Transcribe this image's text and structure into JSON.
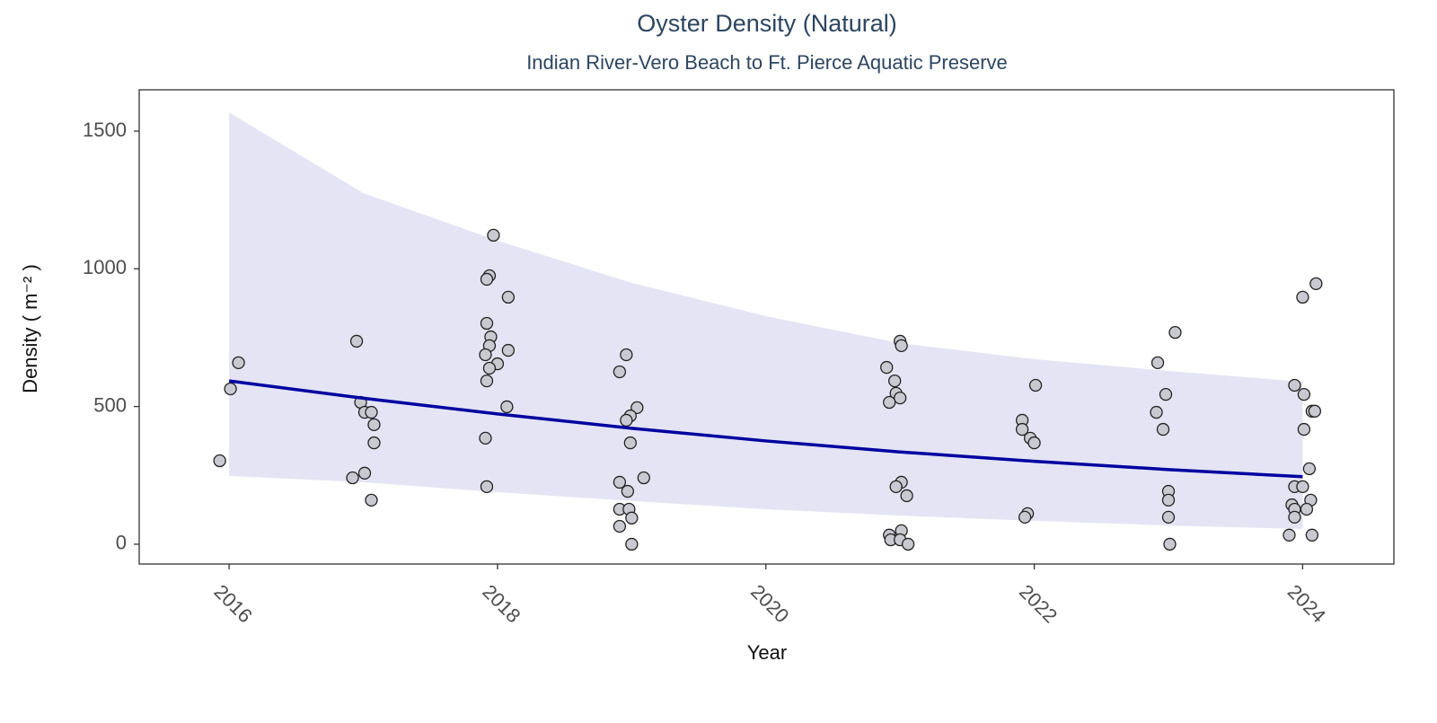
{
  "chart_data": {
    "type": "scatter",
    "title": "Oyster Density (Natural)",
    "subtitle": "Indian River-Vero Beach to Ft. Pierce Aquatic Preserve",
    "x_label": "Year",
    "y_label": "Density ( m⁻² )",
    "xlim": [
      2015.33,
      2024.68
    ],
    "xticks": [
      2016,
      2018,
      2020,
      2022,
      2024
    ],
    "ylim": [
      -72,
      1650
    ],
    "yticks": [
      0,
      500,
      1000,
      1500
    ],
    "grid": false,
    "point_color": "#c9c9d1",
    "x": [
      2015.93,
      2016.01,
      2016.07,
      2016.95,
      2016.98,
      2017.01,
      2017.06,
      2017.08,
      2017.08,
      2017.01,
      2016.92,
      2017.06,
      2017.97,
      2017.94,
      2017.92,
      2018.08,
      2017.92,
      2017.95,
      2017.94,
      2017.91,
      2018.08,
      2018.0,
      2017.94,
      2017.92,
      2018.07,
      2017.91,
      2017.92,
      2018.96,
      2018.91,
      2019.04,
      2018.99,
      2018.96,
      2018.99,
      2019.09,
      2018.91,
      2018.97,
      2018.91,
      2018.98,
      2019.0,
      2018.91,
      2019.0,
      2020.9,
      2020.96,
      2021.0,
      2021.01,
      2020.97,
      2021.0,
      2020.92,
      2021.01,
      2020.97,
      2021.05,
      2020.92,
      2020.93,
      2021.01,
      2021.0,
      2021.06,
      2022.01,
      2021.91,
      2021.91,
      2021.97,
      2022.0,
      2021.95,
      2021.93,
      2023.05,
      2022.92,
      2022.98,
      2022.91,
      2022.96,
      2023.0,
      2023.0,
      2023.0,
      2023.01,
      2024.1,
      2024.0,
      2023.94,
      2024.01,
      2024.07,
      2024.09,
      2024.01,
      2024.05,
      2023.94,
      2024.0,
      2023.92,
      2024.06,
      2023.94,
      2024.03,
      2023.94,
      2023.9,
      2024.07
    ],
    "values": [
      303,
      564,
      659,
      737,
      515,
      479,
      479,
      434,
      368,
      258,
      241,
      160,
      1122,
      975,
      962,
      897,
      802,
      753,
      721,
      688,
      704,
      655,
      639,
      593,
      499,
      385,
      209,
      688,
      626,
      496,
      466,
      450,
      368,
      241,
      225,
      192,
      127,
      127,
      95,
      65,
      0,
      642,
      593,
      737,
      721,
      548,
      531,
      515,
      225,
      209,
      176,
      33,
      16,
      49,
      16,
      0,
      577,
      450,
      417,
      385,
      368,
      111,
      98,
      769,
      659,
      544,
      479,
      417,
      192,
      160,
      98,
      0,
      946,
      897,
      577,
      544,
      483,
      483,
      417,
      274,
      209,
      209,
      143,
      160,
      127,
      127,
      98,
      33,
      33
    ],
    "trend": {
      "color": "#0000a0",
      "band_color": "#e4e4f5",
      "x": [
        2016,
        2017,
        2018,
        2019,
        2020,
        2021,
        2022,
        2023,
        2024
      ],
      "values": [
        593,
        530,
        473,
        421,
        375,
        335,
        301,
        271,
        245
      ],
      "upper": [
        1568,
        1275,
        1102,
        949,
        828,
        730,
        672,
        629,
        590
      ],
      "lower": [
        248,
        225,
        189,
        157,
        127,
        104,
        85,
        68,
        55
      ]
    }
  }
}
